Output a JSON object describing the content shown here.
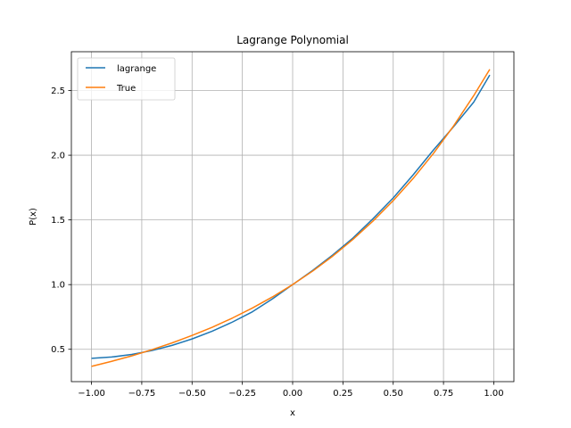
{
  "chart_data": {
    "type": "line",
    "title": "Lagrange Polynomial",
    "xlabel": "x",
    "ylabel": "P(x)",
    "xlim": [
      -1.1,
      1.1
    ],
    "ylim": [
      0.25,
      2.8
    ],
    "xticks": [
      -1.0,
      -0.75,
      -0.5,
      -0.25,
      0.0,
      0.25,
      0.5,
      0.75,
      1.0
    ],
    "xtick_labels": [
      "−1.00",
      "−0.75",
      "−0.50",
      "−0.25",
      "0.00",
      "0.25",
      "0.50",
      "0.75",
      "1.00"
    ],
    "yticks": [
      0.5,
      1.0,
      1.5,
      2.0,
      2.5
    ],
    "ytick_labels": [
      "0.5",
      "1.0",
      "1.5",
      "2.0",
      "2.5"
    ],
    "grid": true,
    "legend_position": "top-left",
    "series": [
      {
        "name": "lagrange",
        "color": "#1f77b4",
        "x": [
          -1.0,
          -0.9,
          -0.8,
          -0.7,
          -0.6,
          -0.5,
          -0.4,
          -0.3,
          -0.2,
          -0.1,
          0.0,
          0.1,
          0.2,
          0.3,
          0.4,
          0.5,
          0.6,
          0.7,
          0.8,
          0.9,
          0.98
        ],
        "y": [
          0.43,
          0.44,
          0.46,
          0.49,
          0.53,
          0.58,
          0.64,
          0.71,
          0.79,
          0.89,
          1.0,
          1.11,
          1.23,
          1.36,
          1.51,
          1.67,
          1.85,
          2.04,
          2.22,
          2.41,
          2.62
        ]
      },
      {
        "name": "True",
        "color": "#ff7f0e",
        "x": [
          -1.0,
          -0.9,
          -0.8,
          -0.7,
          -0.6,
          -0.5,
          -0.4,
          -0.3,
          -0.2,
          -0.1,
          0.0,
          0.1,
          0.2,
          0.3,
          0.4,
          0.5,
          0.6,
          0.7,
          0.8,
          0.9,
          0.98
        ],
        "y": [
          0.368,
          0.407,
          0.449,
          0.497,
          0.549,
          0.607,
          0.67,
          0.741,
          0.819,
          0.905,
          1.0,
          1.105,
          1.221,
          1.35,
          1.492,
          1.649,
          1.822,
          2.014,
          2.226,
          2.46,
          2.664
        ]
      }
    ]
  }
}
